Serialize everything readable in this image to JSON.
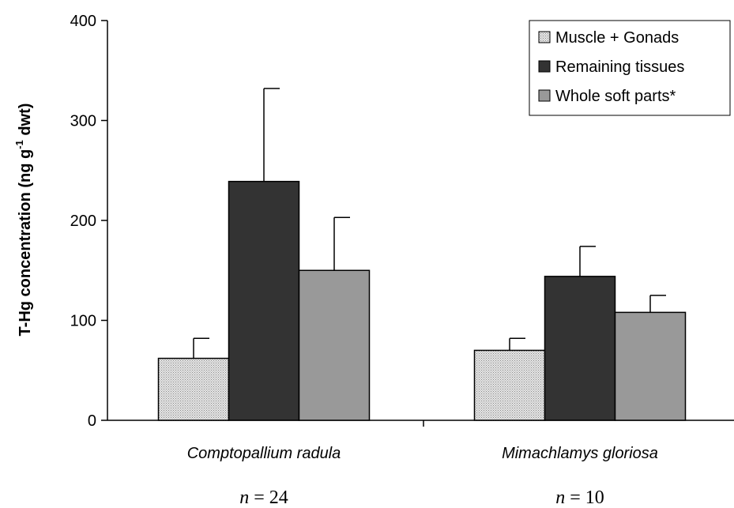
{
  "chart_data": {
    "type": "bar",
    "title": "",
    "xlabel": "",
    "ylabel": "T-Hg concentration (ng g",
    "ylabel_sup": "-1",
    "ylabel_tail": " dwt)",
    "ylim": [
      0,
      400
    ],
    "yticks": [
      0,
      100,
      200,
      300,
      400
    ],
    "ytick_labels": [
      "0",
      "100",
      "200",
      "300",
      "400"
    ],
    "grid": false,
    "legend_position": "top-right",
    "categories": [
      "Comptopallium radula",
      "Mimachlamys gloriosa"
    ],
    "sample_size_prefix": "n",
    "sample_size_sep": " = ",
    "sample_sizes": [
      "24",
      "10"
    ],
    "series": [
      {
        "name": "Muscle + Gonads",
        "values": [
          62,
          70
        ],
        "errors": [
          20,
          12
        ],
        "color": "#d4d4d4",
        "pattern": "dotted"
      },
      {
        "name": "Remaining tissues",
        "values": [
          239,
          144
        ],
        "errors": [
          93,
          30
        ],
        "color": "#333333",
        "pattern": "solid"
      },
      {
        "name": "Whole soft parts*",
        "values": [
          150,
          108
        ],
        "errors": [
          53,
          17
        ],
        "color": "#999999",
        "pattern": "solid"
      }
    ]
  }
}
